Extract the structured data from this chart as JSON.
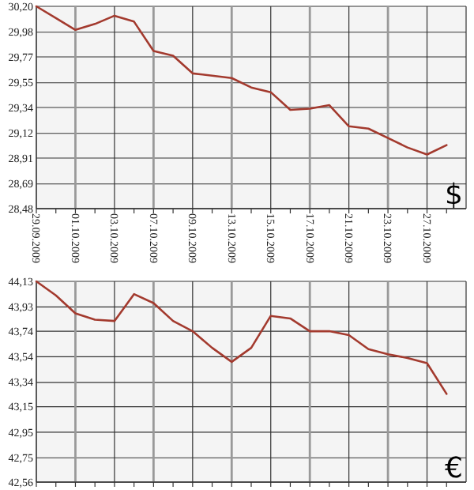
{
  "chart_data": [
    {
      "type": "line",
      "categories": [
        "29.09.2009",
        null,
        "01.10.2009",
        null,
        "03.10.2009",
        null,
        "07.10.2009",
        null,
        "09.10.2009",
        null,
        "13.10.2009",
        null,
        "15.10.2009",
        null,
        "17.10.2009",
        null,
        "21.10.2009",
        null,
        "23.10.2009",
        null,
        "27.10.2009",
        null
      ],
      "series": [
        {
          "color": "#a33a2e",
          "values": [
            30.2,
            30.1,
            30.0,
            30.05,
            30.12,
            30.07,
            29.82,
            29.78,
            29.63,
            29.61,
            29.59,
            29.51,
            29.47,
            29.32,
            29.33,
            29.36,
            29.18,
            29.16,
            29.08,
            29.0,
            28.94,
            29.02
          ]
        }
      ],
      "ylim": [
        28.48,
        30.2
      ],
      "yticks": [
        {
          "value": 28.48,
          "label": "28,48"
        },
        {
          "value": 28.69,
          "label": "28,69"
        },
        {
          "value": 28.91,
          "label": "28,91"
        },
        {
          "value": 29.12,
          "label": "29,12"
        },
        {
          "value": 29.34,
          "label": "29,34"
        },
        {
          "value": 29.55,
          "label": "29,55"
        },
        {
          "value": 29.77,
          "label": "29,77"
        },
        {
          "value": 29.98,
          "label": "29,98"
        },
        {
          "value": 30.2,
          "label": "30,20"
        }
      ],
      "grid": true,
      "annotations": [
        "$"
      ]
    },
    {
      "type": "line",
      "categories": [
        "29.09.2009",
        null,
        "01.10.2009",
        null,
        "03.10.2009",
        null,
        "07.10.2009",
        null,
        "09.10.2009",
        null,
        "13.10.2009",
        null,
        "15.10.2009",
        null,
        "17.10.2009",
        null,
        "21.10.2009",
        null,
        "23.10.2009",
        null,
        "27.10.2009",
        null
      ],
      "series": [
        {
          "color": "#a33a2e",
          "values": [
            44.13,
            44.02,
            43.88,
            43.83,
            43.82,
            44.03,
            43.96,
            43.82,
            43.74,
            43.61,
            43.5,
            43.61,
            43.86,
            43.84,
            43.74,
            43.74,
            43.71,
            43.6,
            43.56,
            43.53,
            43.49,
            43.25
          ]
        }
      ],
      "ylim": [
        42.56,
        44.13
      ],
      "yticks": [
        {
          "value": 42.56,
          "label": "42,56"
        },
        {
          "value": 42.75,
          "label": "42,75"
        },
        {
          "value": 42.95,
          "label": "42,95"
        },
        {
          "value": 43.15,
          "label": "43,15"
        },
        {
          "value": 43.34,
          "label": "43,34"
        },
        {
          "value": 43.54,
          "label": "43,54"
        },
        {
          "value": 43.74,
          "label": "43,74"
        },
        {
          "value": 43.93,
          "label": "43,93"
        },
        {
          "value": 44.13,
          "label": "44,13"
        }
      ],
      "grid": true,
      "tick_labels": "y",
      "annotations": [
        "€"
      ]
    }
  ]
}
